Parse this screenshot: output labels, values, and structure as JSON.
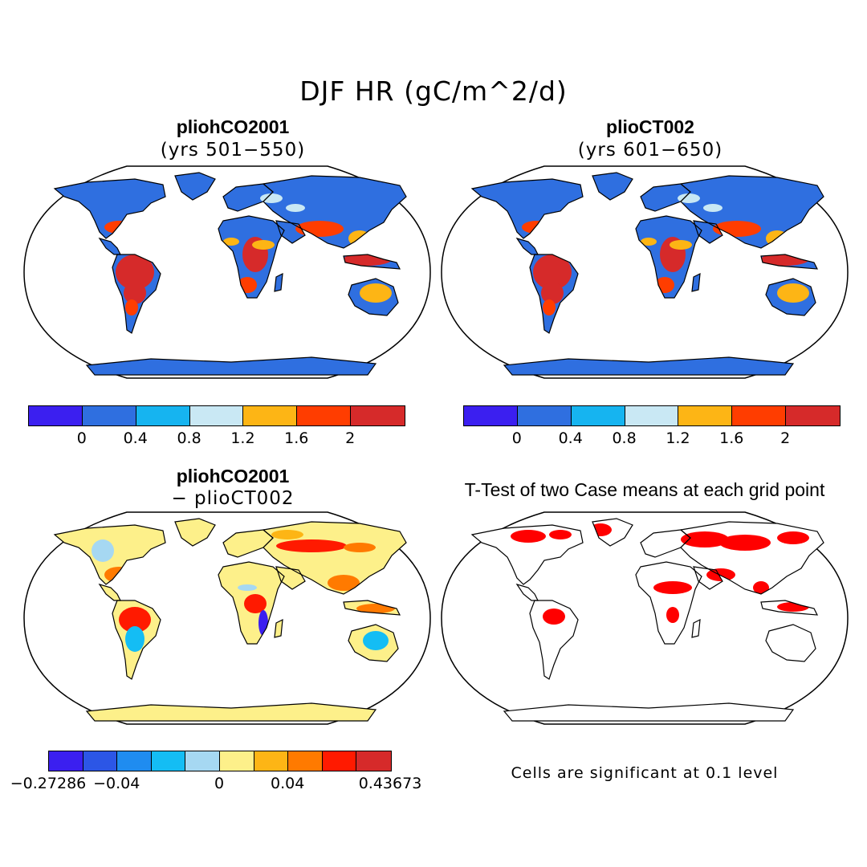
{
  "figure": {
    "title": "DJF HR (gC/m^2/d)"
  },
  "panels": [
    {
      "title": "pliohCO2001",
      "subtitle": "(yrs 501−550)",
      "type": "map",
      "colorbar": {
        "colors": [
          "#3b1ff0",
          "#2f6fe0",
          "#16b4f0",
          "#c9e8f4",
          "#fdb515",
          "#ff3d00",
          "#d62a2a"
        ],
        "tick_labels": [
          "0",
          "0.4",
          "0.8",
          "1.2",
          "1.6",
          "2"
        ]
      }
    },
    {
      "title": "plioCT002",
      "subtitle": "(yrs 601−650)",
      "type": "map",
      "colorbar": {
        "colors": [
          "#3b1ff0",
          "#2f6fe0",
          "#16b4f0",
          "#c9e8f4",
          "#fdb515",
          "#ff3d00",
          "#d62a2a"
        ],
        "tick_labels": [
          "0",
          "0.4",
          "0.8",
          "1.2",
          "1.6",
          "2"
        ]
      }
    },
    {
      "title": "pliohCO2001",
      "subtitle": "− plioCT002",
      "type": "map",
      "colorbar": {
        "colors": [
          "#3b1ff0",
          "#2c56e6",
          "#1f8cf0",
          "#14bdf4",
          "#a6d8f2",
          "#fdf08a",
          "#fdb515",
          "#ff7a00",
          "#ff1a00",
          "#d62a2a"
        ],
        "tick_labels": [
          "−0.27286",
          "−0.04",
          "0",
          "0.04",
          "0.43673"
        ]
      }
    },
    {
      "title": "T-Test of two Case means at each grid point",
      "type": "map",
      "note": "Cells are significant at 0.1 level"
    }
  ],
  "colors": {
    "ocean": "#ffffff",
    "coast": "#000000",
    "land_cold": "#2f6fe0",
    "land_warm": "#d62a2a",
    "diff_neutral": "#fdf08a",
    "significant": "#ff0000"
  }
}
